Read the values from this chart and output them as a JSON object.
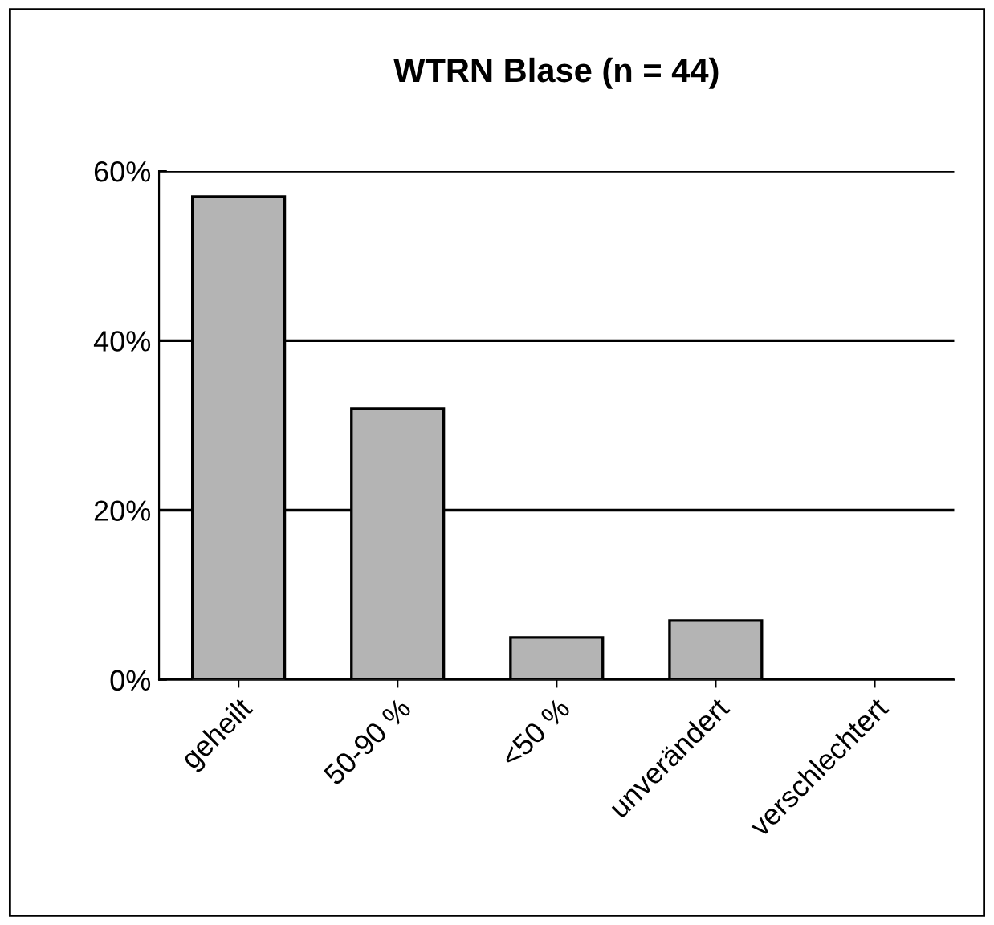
{
  "chart_data": {
    "type": "bar",
    "title": "WTRN Blase (n = 44)",
    "categories": [
      "geheilt",
      "50-90 %",
      "<50 %",
      "unverändert",
      "verschlechtert"
    ],
    "values": [
      57,
      32,
      5,
      7,
      0
    ],
    "color": "#b4b4b4",
    "ylim": [
      0,
      60
    ],
    "yticks": [
      {
        "value": 0,
        "label": "0%"
      },
      {
        "value": 20,
        "label": "20%"
      },
      {
        "value": 40,
        "label": "40%"
      },
      {
        "value": 60,
        "label": "60%"
      }
    ],
    "grid": "y",
    "legend": false
  }
}
